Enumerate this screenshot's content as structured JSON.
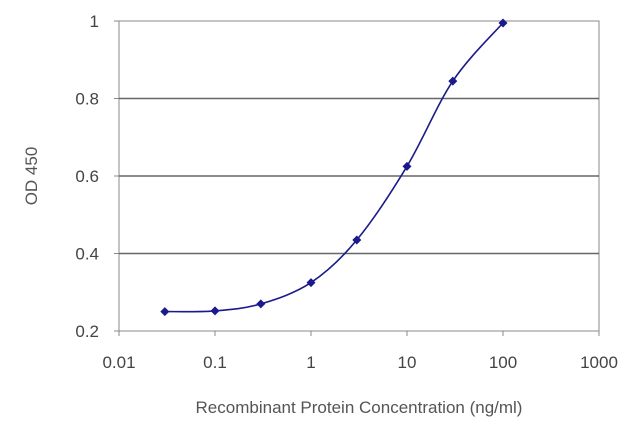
{
  "chart_data": {
    "type": "scatter",
    "xscale": "log",
    "xlabel": "Recombinant Protein Concentration (ng/ml)",
    "ylabel": "OD 450",
    "xlim": [
      0.01,
      1000
    ],
    "ylim": [
      0.2,
      1.0
    ],
    "xticks": [
      0.01,
      0.1,
      1,
      10,
      100,
      1000
    ],
    "xtick_labels": [
      "0.01",
      "0.1",
      "1",
      "10",
      "100",
      "1000"
    ],
    "yticks": [
      0.2,
      0.4,
      0.6,
      0.8,
      1.0
    ],
    "ytick_labels": [
      "0.2",
      "0.4",
      "0.6",
      "0.8",
      "1"
    ],
    "grid": "horizontal",
    "fit_line": "sigmoid curve through points",
    "colors": {
      "series": "#1a1a8c",
      "grid": "#666666",
      "axis": "#888888"
    },
    "series": [
      {
        "x": [
          0.03,
          0.1,
          0.3,
          1,
          3,
          10,
          30,
          100
        ],
        "y": [
          0.25,
          0.252,
          0.27,
          0.325,
          0.435,
          0.625,
          0.845,
          0.995
        ]
      }
    ]
  }
}
